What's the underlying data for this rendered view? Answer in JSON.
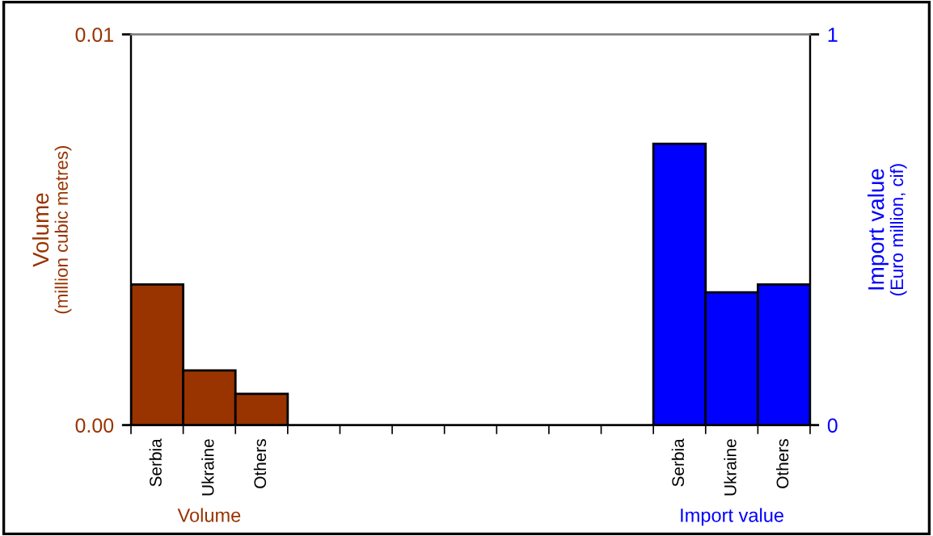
{
  "chart_data": {
    "type": "bar",
    "categories": [
      "Serbia",
      "Ukraine",
      "Others",
      null,
      null,
      null,
      null,
      null,
      null,
      null,
      "Serbia",
      "Ukraine",
      "Others"
    ],
    "series": [
      {
        "name": "Volume",
        "color": "#993300",
        "values": [
          0.0036,
          0.0014,
          0.0008,
          null,
          null,
          null,
          null,
          null,
          null,
          null,
          null,
          null,
          null
        ]
      },
      {
        "name": "Import value",
        "color": "#0000ff",
        "axis": "y2",
        "values": [
          null,
          null,
          null,
          null,
          null,
          null,
          null,
          null,
          null,
          null,
          0.72,
          0.34,
          0.36
        ]
      }
    ],
    "ylabel": "Volume\n(million cubic metres)",
    "y2label": "Import value\n(Euro million, cif)",
    "ylim": [
      0,
      0.01
    ],
    "yticks": [
      {
        "value": 0,
        "label": "0.00"
      },
      {
        "value": 0.01,
        "label": "0.01"
      }
    ],
    "y2lim": [
      0,
      1
    ],
    "y2ticks": [
      0,
      1
    ],
    "grid": false,
    "legend": false
  }
}
